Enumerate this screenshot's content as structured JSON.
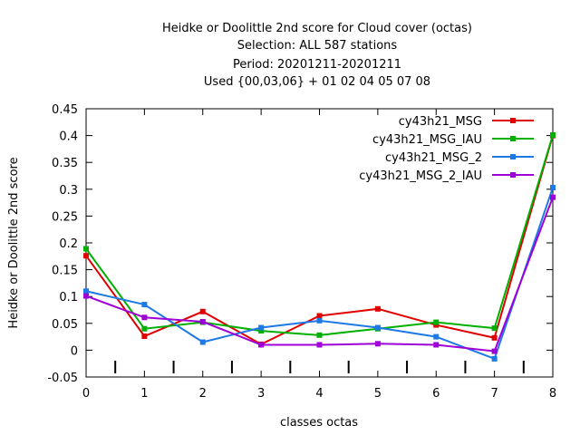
{
  "chart_data": {
    "type": "line",
    "title_lines": [
      "Heidke or Doolittle 2nd score  for Cloud cover (octas)",
      "Selection: ALL    587 stations",
      "Period: 20201211-20201211",
      "Used {00,03,06} + 01 02 04 05 07 08"
    ],
    "xlabel": "classes octas",
    "ylabel": "Heidke or Doolittle 2nd score",
    "xlim": [
      0,
      8
    ],
    "ylim": [
      -0.05,
      0.45
    ],
    "x_ticks": [
      0,
      1,
      2,
      3,
      4,
      5,
      6,
      7,
      8
    ],
    "y_ticks": [
      -0.05,
      0,
      0.05,
      0.1,
      0.15,
      0.2,
      0.25,
      0.3,
      0.35,
      0.4,
      0.45
    ],
    "y_tick_labels": [
      "-0.05",
      "0",
      "0.05",
      "0.1",
      "0.15",
      "0.2",
      "0.25",
      "0.3",
      "0.35",
      "0.4",
      "0.45"
    ],
    "category_markers_x": [
      0.5,
      1.5,
      2.5,
      3.5,
      4.5,
      5.5,
      6.5,
      7.5
    ],
    "legend_position": "top-right",
    "grid": false,
    "x": [
      0,
      1,
      2,
      3,
      4,
      5,
      6,
      7,
      8
    ],
    "series": [
      {
        "name": "cy43h21_MSG",
        "color": "#e00000",
        "values": [
          0.176,
          0.026,
          0.072,
          0.011,
          0.064,
          0.077,
          0.047,
          0.023,
          0.4
        ]
      },
      {
        "name": "cy43h21_MSG_IAU",
        "color": "#00b000",
        "values": [
          0.189,
          0.04,
          0.052,
          0.036,
          0.028,
          0.04,
          0.052,
          0.041,
          0.401
        ]
      },
      {
        "name": "cy43h21_MSG_2",
        "color": "#1e78e6",
        "values": [
          0.11,
          0.085,
          0.015,
          0.042,
          0.055,
          0.042,
          0.025,
          -0.016,
          0.303
        ]
      },
      {
        "name": "cy43h21_MSG_2_IAU",
        "color": "#a000d8",
        "values": [
          0.101,
          0.061,
          0.053,
          0.01,
          0.01,
          0.012,
          0.01,
          -0.002,
          0.285
        ]
      }
    ]
  }
}
